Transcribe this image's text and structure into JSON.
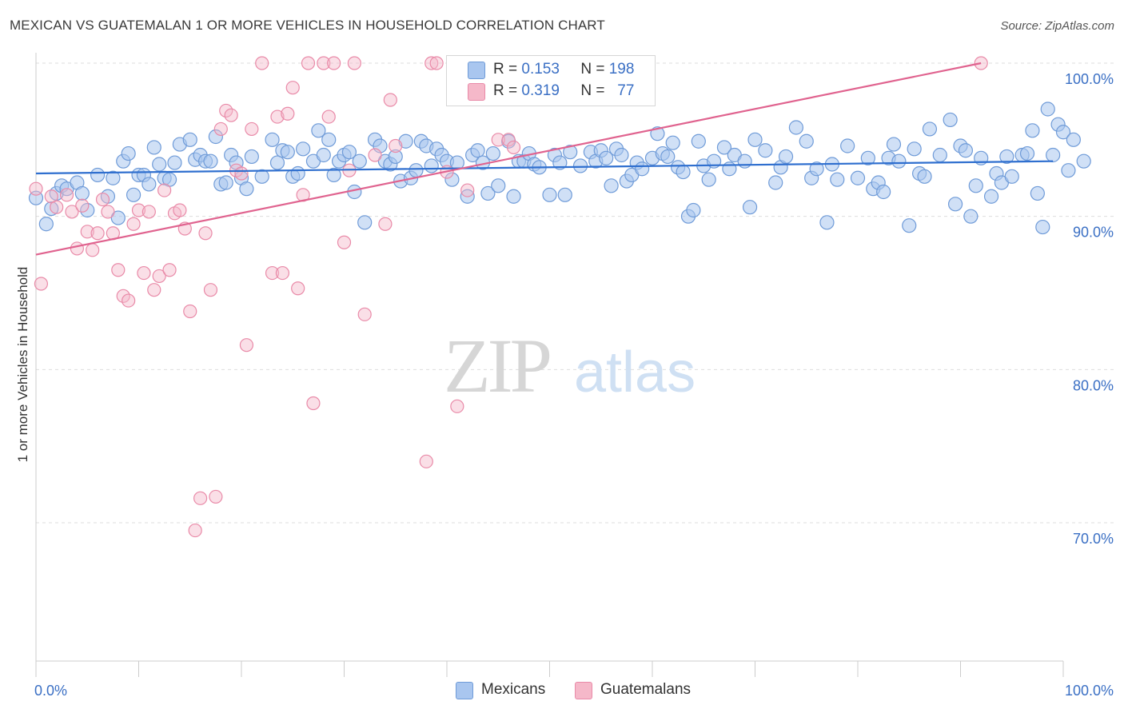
{
  "title": "MEXICAN VS GUATEMALAN 1 OR MORE VEHICLES IN HOUSEHOLD CORRELATION CHART",
  "source": "Source: ZipAtlas.com",
  "watermark": {
    "zip": "ZIP",
    "atlas": "atlas"
  },
  "legend": {
    "mexicans": {
      "r_label": "R =",
      "r_value": "0.153",
      "n_label": "N =",
      "n_value": "198"
    },
    "guatemalans": {
      "r_label": "R =",
      "r_value": "0.319",
      "n_label": "N =",
      "n_value": "77"
    }
  },
  "bottom_legend": {
    "mexicans": "Mexicans",
    "guatemalans": "Guatemalans"
  },
  "colors": {
    "blue_fill": "#a9c6ef",
    "blue_stroke": "#6f9bd8",
    "blue_line": "#2f6fcf",
    "pink_fill": "#f5b8c9",
    "pink_stroke": "#e98aa8",
    "pink_line": "#e0638f",
    "axis_text": "#3a6fc4",
    "grid": "#dddddd"
  },
  "chart_data": {
    "type": "scatter",
    "xlabel": "",
    "ylabel": "1 or more Vehicles in Household",
    "xlim": [
      0,
      100
    ],
    "ylim": [
      60,
      101.5
    ],
    "x_tick_labels": [
      "0.0%",
      "100.0%"
    ],
    "y_ticks": [
      70,
      80,
      90,
      100
    ],
    "y_tick_labels": [
      "70.0%",
      "80.0%",
      "90.0%",
      "100.0%"
    ],
    "series": [
      {
        "name": "Mexicans",
        "trend": {
          "x": [
            0,
            99
          ],
          "y": [
            92.8,
            93.6
          ]
        },
        "points": [
          [
            0,
            91.2
          ],
          [
            1,
            89.5
          ],
          [
            1.5,
            90.5
          ],
          [
            2,
            91.5
          ],
          [
            2.5,
            92
          ],
          [
            3,
            91.8
          ],
          [
            4,
            92.2
          ],
          [
            4.5,
            91.5
          ],
          [
            5,
            90.4
          ],
          [
            6,
            92.7
          ],
          [
            7,
            91.3
          ],
          [
            7.5,
            92.5
          ],
          [
            8,
            89.9
          ],
          [
            8.5,
            93.6
          ],
          [
            9,
            94.1
          ],
          [
            9.5,
            91.4
          ],
          [
            10,
            92.7
          ],
          [
            10.5,
            92.7
          ],
          [
            11,
            92.1
          ],
          [
            11.5,
            94.5
          ],
          [
            12,
            93.4
          ],
          [
            12.5,
            92.5
          ],
          [
            13,
            92.4
          ],
          [
            13.5,
            93.5
          ],
          [
            14,
            94.7
          ],
          [
            15,
            95
          ],
          [
            15.5,
            93.7
          ],
          [
            16,
            94
          ],
          [
            16.5,
            93.6
          ],
          [
            17,
            93.6
          ],
          [
            17.5,
            95.2
          ],
          [
            18,
            92.1
          ],
          [
            18.5,
            92.2
          ],
          [
            19,
            94
          ],
          [
            19.5,
            93.5
          ],
          [
            20,
            92.5
          ],
          [
            20.5,
            91.8
          ],
          [
            21,
            93.9
          ],
          [
            22,
            92.6
          ],
          [
            23,
            95
          ],
          [
            23.5,
            93.5
          ],
          [
            24,
            94.3
          ],
          [
            24.5,
            94.2
          ],
          [
            25,
            92.6
          ],
          [
            25.5,
            92.8
          ],
          [
            26,
            94.4
          ],
          [
            27,
            93.6
          ],
          [
            27.5,
            95.6
          ],
          [
            28,
            94
          ],
          [
            28.5,
            95
          ],
          [
            29,
            92.7
          ],
          [
            29.5,
            93.6
          ],
          [
            30,
            94
          ],
          [
            30.5,
            94.2
          ],
          [
            31,
            91.6
          ],
          [
            31.5,
            93.6
          ],
          [
            32,
            89.6
          ],
          [
            33,
            95
          ],
          [
            33.5,
            94.6
          ],
          [
            34,
            93.6
          ],
          [
            34.5,
            93.4
          ],
          [
            35,
            93.9
          ],
          [
            35.5,
            92.3
          ],
          [
            36,
            94.9
          ],
          [
            36.5,
            92.5
          ],
          [
            37,
            93
          ],
          [
            37.5,
            94.9
          ],
          [
            38,
            94.6
          ],
          [
            38.5,
            93.3
          ],
          [
            39,
            94.4
          ],
          [
            39.5,
            94
          ],
          [
            40,
            93.6
          ],
          [
            40.5,
            92.4
          ],
          [
            41,
            93.5
          ],
          [
            42,
            91.3
          ],
          [
            42.5,
            94
          ],
          [
            43,
            94.3
          ],
          [
            43.5,
            93.5
          ],
          [
            44,
            91.5
          ],
          [
            44.5,
            94.1
          ],
          [
            45,
            92
          ],
          [
            46,
            94.9
          ],
          [
            46.5,
            91.3
          ],
          [
            47,
            93.6
          ],
          [
            47.5,
            93.6
          ],
          [
            48,
            94.1
          ],
          [
            48.5,
            93.4
          ],
          [
            49,
            93.2
          ],
          [
            50,
            91.4
          ],
          [
            50.5,
            94
          ],
          [
            51,
            93.5
          ],
          [
            51.5,
            91.4
          ],
          [
            52,
            94.2
          ],
          [
            53,
            93.3
          ],
          [
            54,
            94.2
          ],
          [
            54.5,
            93.6
          ],
          [
            55,
            94.3
          ],
          [
            55.5,
            93.8
          ],
          [
            56,
            92
          ],
          [
            56.5,
            94.4
          ],
          [
            57,
            94
          ],
          [
            57.5,
            92.3
          ],
          [
            58,
            92.7
          ],
          [
            58.5,
            93.5
          ],
          [
            59,
            93.1
          ],
          [
            60,
            93.8
          ],
          [
            60.5,
            95.4
          ],
          [
            61,
            94.1
          ],
          [
            61.5,
            93.9
          ],
          [
            62,
            94.8
          ],
          [
            62.5,
            93.2
          ],
          [
            63,
            92.9
          ],
          [
            63.5,
            90
          ],
          [
            64,
            90.4
          ],
          [
            64.5,
            94.9
          ],
          [
            65,
            93.3
          ],
          [
            65.5,
            92.4
          ],
          [
            66,
            93.6
          ],
          [
            67,
            94.5
          ],
          [
            67.5,
            93.1
          ],
          [
            68,
            94
          ],
          [
            69,
            93.6
          ],
          [
            69.5,
            90.6
          ],
          [
            70,
            95
          ],
          [
            71,
            94.3
          ],
          [
            72,
            92.2
          ],
          [
            72.5,
            93.2
          ],
          [
            73,
            93.9
          ],
          [
            74,
            95.8
          ],
          [
            75,
            94.9
          ],
          [
            75.5,
            92.5
          ],
          [
            76,
            93.1
          ],
          [
            77,
            89.6
          ],
          [
            77.5,
            93.4
          ],
          [
            78,
            92.4
          ],
          [
            79,
            94.6
          ],
          [
            80,
            92.5
          ],
          [
            81,
            93.8
          ],
          [
            81.5,
            91.8
          ],
          [
            82,
            92.2
          ],
          [
            82.5,
            91.6
          ],
          [
            83,
            93.8
          ],
          [
            83.5,
            94.7
          ],
          [
            84,
            93.6
          ],
          [
            85,
            89.4
          ],
          [
            85.5,
            94.4
          ],
          [
            86,
            92.8
          ],
          [
            86.5,
            92.6
          ],
          [
            87,
            95.7
          ],
          [
            88,
            94
          ],
          [
            89,
            96.3
          ],
          [
            89.5,
            90.8
          ],
          [
            90,
            94.6
          ],
          [
            90.5,
            94.3
          ],
          [
            91,
            90
          ],
          [
            91.5,
            92
          ],
          [
            92,
            93.8
          ],
          [
            93,
            91.3
          ],
          [
            93.5,
            92.8
          ],
          [
            94,
            92.2
          ],
          [
            94.5,
            93.9
          ],
          [
            95,
            92.6
          ],
          [
            96,
            94
          ],
          [
            96.5,
            94.1
          ],
          [
            97,
            95.6
          ],
          [
            97.5,
            91.5
          ],
          [
            98,
            89.3
          ],
          [
            98.5,
            97
          ],
          [
            99,
            94
          ],
          [
            99.5,
            96
          ],
          [
            100,
            95.5
          ],
          [
            100.5,
            93
          ],
          [
            101,
            95
          ],
          [
            102,
            93.6
          ]
        ]
      },
      {
        "name": "Guatemalans",
        "trend": {
          "x": [
            0,
            92
          ],
          "y": [
            87.5,
            100
          ]
        },
        "points": [
          [
            0,
            91.8
          ],
          [
            0.5,
            85.6
          ],
          [
            1.5,
            91.3
          ],
          [
            2,
            90.6
          ],
          [
            3,
            91.4
          ],
          [
            3.5,
            90.3
          ],
          [
            4,
            87.9
          ],
          [
            4.5,
            90.7
          ],
          [
            5,
            89
          ],
          [
            5.5,
            87.8
          ],
          [
            6,
            88.9
          ],
          [
            6.5,
            91.1
          ],
          [
            7,
            90.3
          ],
          [
            7.5,
            88.9
          ],
          [
            8,
            86.5
          ],
          [
            8.5,
            84.8
          ],
          [
            9,
            84.5
          ],
          [
            9.5,
            89.5
          ],
          [
            10,
            90.4
          ],
          [
            10.5,
            86.3
          ],
          [
            11,
            90.3
          ],
          [
            11.5,
            85.2
          ],
          [
            12,
            86.1
          ],
          [
            12.5,
            91.7
          ],
          [
            13,
            86.5
          ],
          [
            13.5,
            90.2
          ],
          [
            14,
            90.4
          ],
          [
            14.5,
            89.2
          ],
          [
            15,
            83.8
          ],
          [
            15.5,
            69.5
          ],
          [
            16,
            71.6
          ],
          [
            16.5,
            88.9
          ],
          [
            17,
            85.2
          ],
          [
            17.5,
            71.7
          ],
          [
            18,
            95.7
          ],
          [
            18.5,
            96.9
          ],
          [
            19,
            96.6
          ],
          [
            19.5,
            93
          ],
          [
            20,
            92.8
          ],
          [
            20.5,
            81.6
          ],
          [
            21,
            95.7
          ],
          [
            22,
            100
          ],
          [
            23,
            86.3
          ],
          [
            23.5,
            96.5
          ],
          [
            24,
            86.3
          ],
          [
            24.5,
            96.7
          ],
          [
            25,
            98.4
          ],
          [
            25.5,
            85.3
          ],
          [
            26,
            91.4
          ],
          [
            26.5,
            100
          ],
          [
            27,
            77.8
          ],
          [
            28,
            100
          ],
          [
            28.5,
            96.5
          ],
          [
            29,
            100
          ],
          [
            30,
            88.3
          ],
          [
            30.5,
            93
          ],
          [
            31,
            100
          ],
          [
            32,
            83.6
          ],
          [
            33,
            94
          ],
          [
            34,
            89.5
          ],
          [
            34.5,
            97.6
          ],
          [
            35,
            94.6
          ],
          [
            38,
            74
          ],
          [
            38.5,
            100
          ],
          [
            39,
            100
          ],
          [
            40,
            92.9
          ],
          [
            41,
            77.6
          ],
          [
            42,
            91.7
          ],
          [
            43,
            100
          ],
          [
            44,
            100
          ],
          [
            45,
            95
          ],
          [
            46,
            95
          ],
          [
            46.5,
            94.5
          ],
          [
            48,
            100
          ],
          [
            48.5,
            100
          ],
          [
            50,
            100
          ],
          [
            92,
            100
          ]
        ]
      }
    ]
  }
}
